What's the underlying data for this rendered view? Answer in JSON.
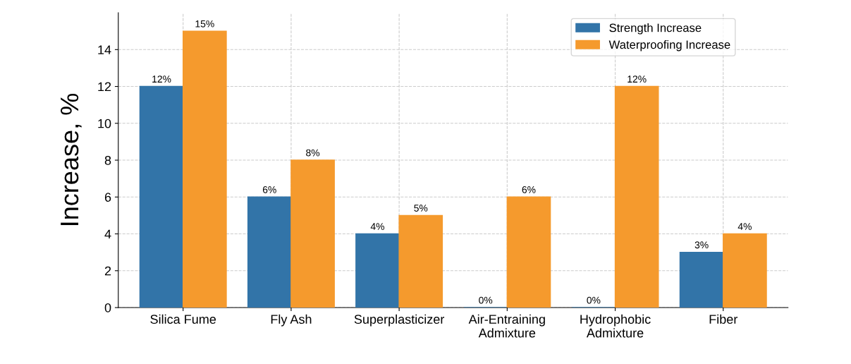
{
  "chart_data": {
    "type": "bar",
    "ylabel": "Increase, %",
    "categories": [
      "Silica Fume",
      "Fly Ash",
      "Superplasticizer",
      "Air-Entraining\nAdmixture",
      "Hydrophobic\nAdmixture",
      "Fiber"
    ],
    "series": [
      {
        "name": "Strength Increase",
        "color": "#3274a8",
        "values": [
          12,
          6,
          4,
          0,
          0,
          3
        ],
        "value_labels": [
          "12%",
          "6%",
          "4%",
          "0%",
          "0%",
          "3%"
        ]
      },
      {
        "name": "Waterproofing Increase",
        "color": "#f59a2d",
        "values": [
          15,
          8,
          5,
          6,
          12,
          4
        ],
        "value_labels": [
          "15%",
          "8%",
          "5%",
          "6%",
          "12%",
          "4%"
        ]
      }
    ],
    "ylim": [
      0,
      16
    ],
    "yticks": [
      0,
      2,
      4,
      6,
      8,
      10,
      12,
      14
    ],
    "grid": true,
    "legend": "top right"
  }
}
